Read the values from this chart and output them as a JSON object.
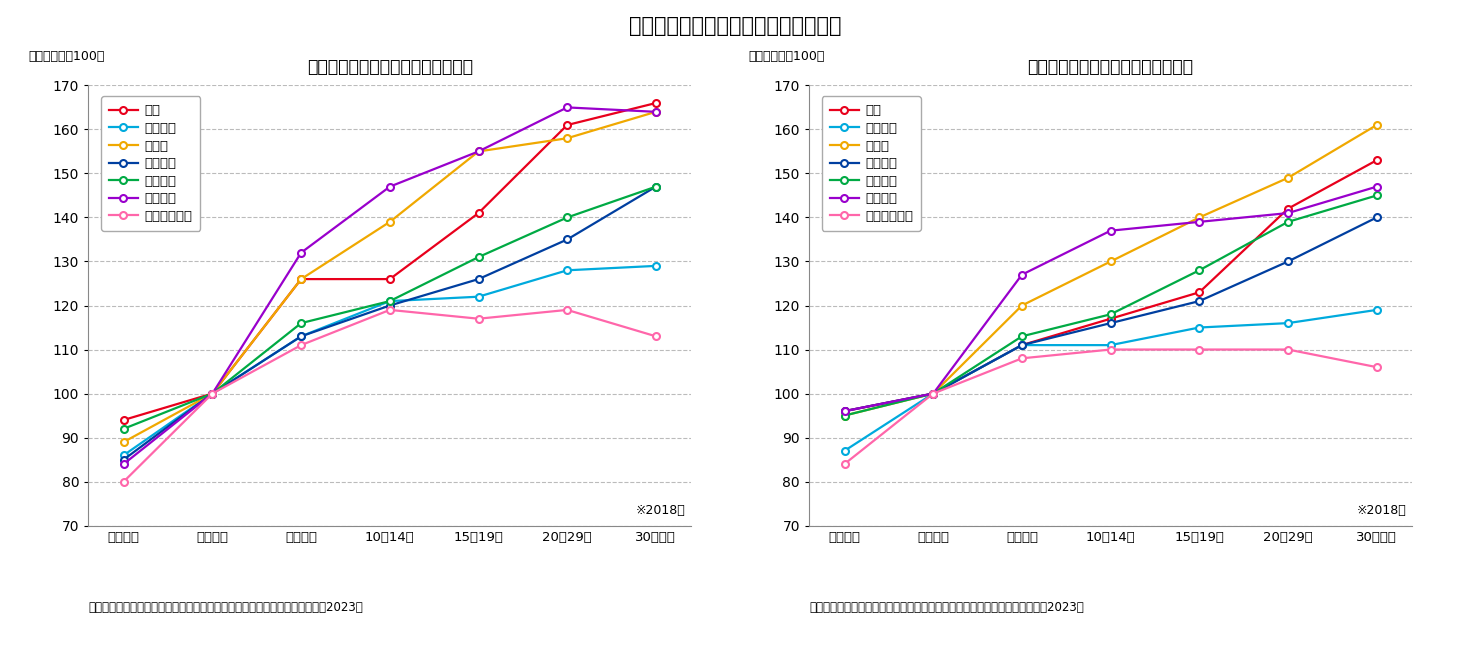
{
  "title": "（図表３）各国の勤続年数別賃金格差",
  "left_title": "各国の勤続年数別賃金格差【男性】",
  "right_title": "各国の勤続年数別賃金格差【女性】",
  "subtitle": "（１～５年＝100）",
  "xlabel_note": "※2018年",
  "source": "（資料）独立行政法人労働政策研究・研修機構「データブック国際労働比較2023」",
  "x_labels": [
    "１年未満",
    "１～５年",
    "６～９年",
    "10～14年",
    "15～19年",
    "20～29年",
    "30年以上"
  ],
  "countries": [
    "日本",
    "イギリス",
    "ドイツ",
    "フランス",
    "イタリア",
    "オランダ",
    "スウェーデン"
  ],
  "colors": [
    "#e8001c",
    "#00aadd",
    "#f0a800",
    "#003fa0",
    "#00aa44",
    "#9900cc",
    "#ff66aa"
  ],
  "male_data": {
    "日本": [
      94,
      100,
      126,
      126,
      141,
      161,
      166
    ],
    "イギリス": [
      86,
      100,
      113,
      121,
      122,
      128,
      129
    ],
    "ドイツ": [
      89,
      100,
      126,
      139,
      155,
      158,
      164
    ],
    "フランス": [
      85,
      100,
      113,
      120,
      126,
      135,
      147
    ],
    "イタリア": [
      92,
      100,
      116,
      121,
      131,
      140,
      147
    ],
    "オランダ": [
      84,
      100,
      132,
      147,
      155,
      165,
      164
    ],
    "スウェーデン": [
      80,
      100,
      111,
      119,
      117,
      119,
      113
    ]
  },
  "female_data": {
    "日本": [
      96,
      100,
      111,
      117,
      123,
      142,
      153
    ],
    "イギリス": [
      87,
      100,
      111,
      111,
      115,
      116,
      119
    ],
    "ドイツ": [
      95,
      100,
      120,
      130,
      140,
      149,
      161
    ],
    "フランス": [
      96,
      100,
      111,
      116,
      121,
      130,
      140
    ],
    "イタリア": [
      95,
      100,
      113,
      118,
      128,
      139,
      145
    ],
    "オランダ": [
      96,
      100,
      127,
      137,
      139,
      141,
      147
    ],
    "スウェーデン": [
      84,
      100,
      108,
      110,
      110,
      110,
      106
    ]
  },
  "ylim": [
    70,
    170
  ],
  "yticks": [
    70,
    80,
    90,
    100,
    110,
    120,
    130,
    140,
    150,
    160,
    170
  ]
}
